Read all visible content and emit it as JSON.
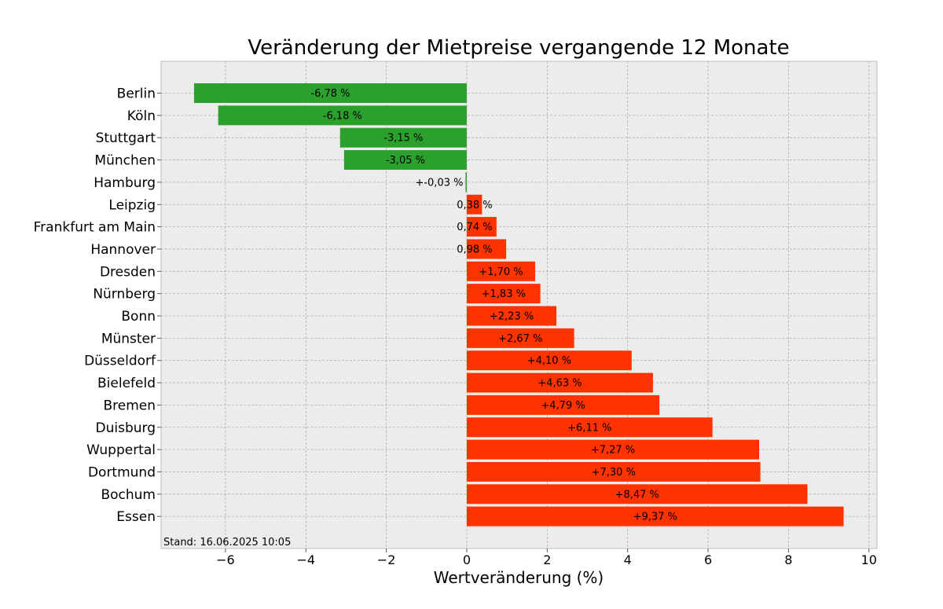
{
  "chart_data": {
    "type": "bar",
    "orientation": "horizontal",
    "title": "Veränderung der Mietpreise vergangende 12 Monate",
    "xlabel": "Wertveränderung (%)",
    "ylabel": "",
    "xlim": [
      -7.6,
      10.2
    ],
    "xticks": [
      -6,
      -4,
      -2,
      0,
      2,
      4,
      6,
      8,
      10
    ],
    "xtick_labels": [
      "−6",
      "−4",
      "−2",
      "0",
      "2",
      "4",
      "6",
      "8",
      "10"
    ],
    "grid": true,
    "categories": [
      "Berlin",
      "Köln",
      "Stuttgart",
      "München",
      "Hamburg",
      "Leipzig",
      "Frankfurt am Main",
      "Hannover",
      "Dresden",
      "Nürnberg",
      "Bonn",
      "Münster",
      "Düsseldorf",
      "Bielefeld",
      "Bremen",
      "Duisburg",
      "Wuppertal",
      "Dortmund",
      "Bochum",
      "Essen"
    ],
    "values": [
      -6.78,
      -6.18,
      -3.15,
      -3.05,
      -0.03,
      0.38,
      0.74,
      0.98,
      1.7,
      1.83,
      2.23,
      2.67,
      4.1,
      4.63,
      4.79,
      6.11,
      7.27,
      7.3,
      8.47,
      9.37
    ],
    "value_labels": [
      "-6,78 %",
      "-6,18 %",
      "-3,15 %",
      "-3,05 %",
      "+-0,03 %",
      "0,38 %",
      "0,74 %",
      "0,98 %",
      "+1,70 %",
      "+1,83 %",
      "+2,23 %",
      "+2,67 %",
      "+4,10 %",
      "+4,63 %",
      "+4,79 %",
      "+6,11 %",
      "+7,27 %",
      "+7,30 %",
      "+8,47 %",
      "+9,37 %"
    ],
    "colors": {
      "negative": "#2ca02c",
      "positive": "#ff3300",
      "plot_background": "#ececec",
      "grid": "#b0b0b0"
    },
    "annotation": "Stand: 16.06.2025 10:05"
  }
}
